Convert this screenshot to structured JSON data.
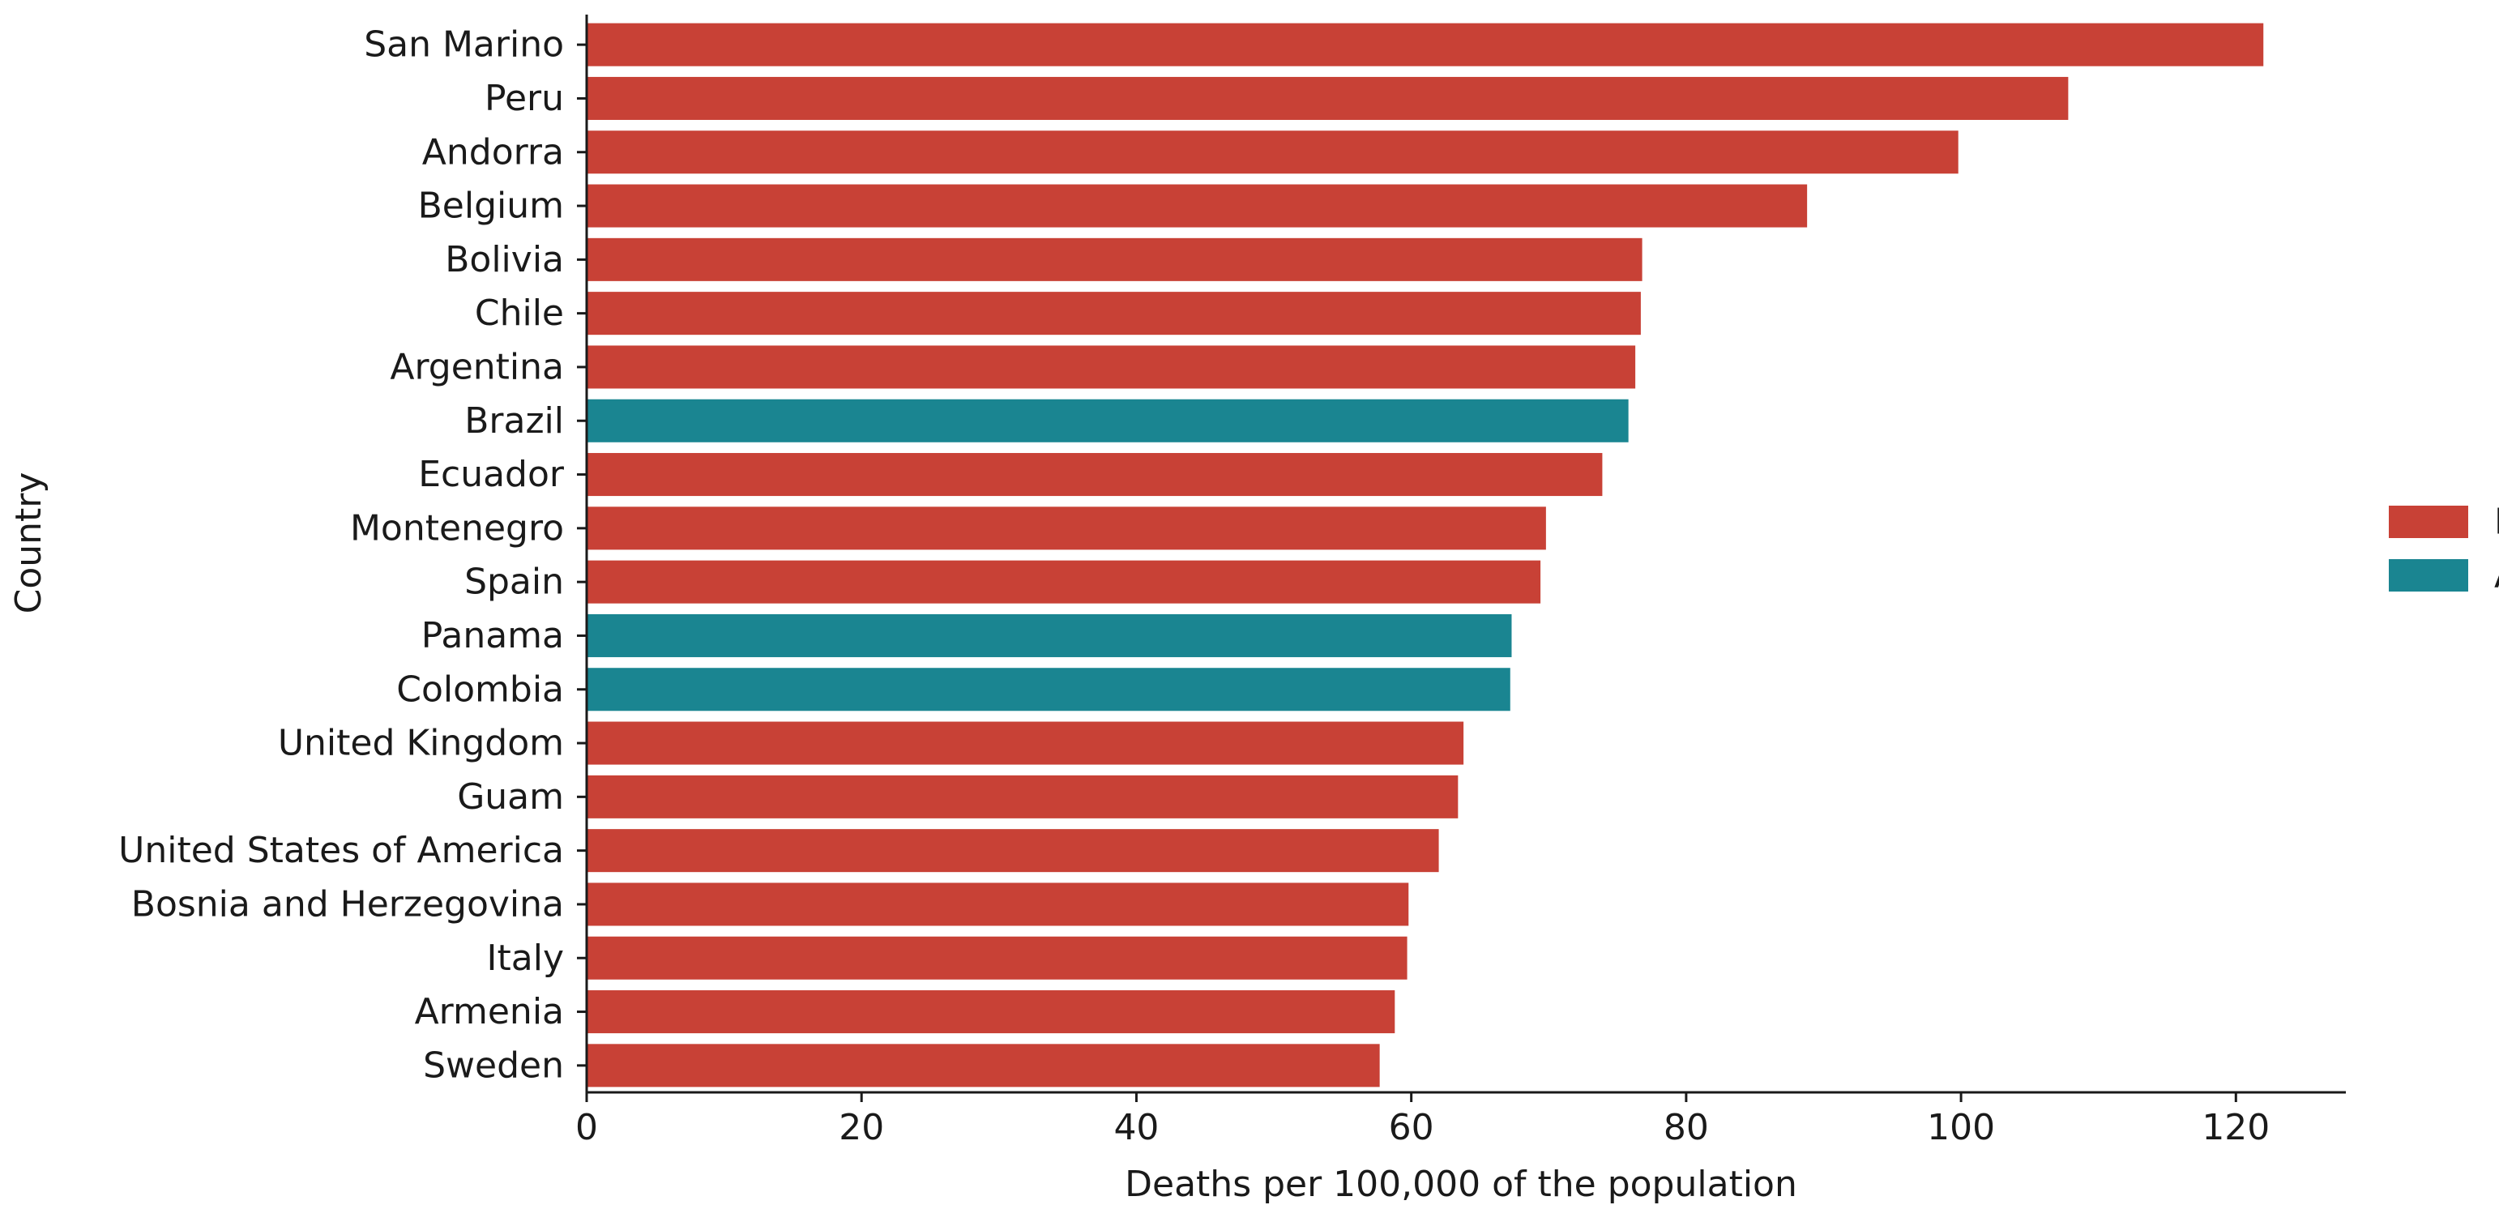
{
  "chart_data": {
    "type": "bar",
    "orientation": "horizontal",
    "title": "",
    "xlabel": "Deaths per 100,000 of the population",
    "ylabel": "Country",
    "xlim": [
      0,
      128
    ],
    "xticks": [
      0,
      20,
      40,
      60,
      80,
      100,
      120
    ],
    "grid": false,
    "legend_position": "right",
    "colors": {
      "B": "#c84136",
      "A": "#1a8591"
    },
    "legend": [
      {
        "name": "B",
        "color": "#c84136"
      },
      {
        "name": "A",
        "color": "#1a8591"
      }
    ],
    "categories": [
      "San Marino",
      "Peru",
      "Andorra",
      "Belgium",
      "Bolivia",
      "Chile",
      "Argentina",
      "Brazil",
      "Ecuador",
      "Montenegro",
      "Spain",
      "Panama",
      "Colombia",
      "United Kingdom",
      "Guam",
      "United States of America",
      "Bosnia and Herzegovina",
      "Italy",
      "Armenia",
      "Sweden"
    ],
    "values": [
      122,
      107.8,
      99.8,
      88.8,
      76.8,
      76.7,
      76.3,
      75.8,
      73.9,
      69.8,
      69.4,
      67.3,
      67.2,
      63.8,
      63.4,
      62,
      59.8,
      59.7,
      58.8,
      57.7
    ],
    "groups": [
      "B",
      "B",
      "B",
      "B",
      "B",
      "B",
      "B",
      "A",
      "B",
      "B",
      "B",
      "A",
      "A",
      "B",
      "B",
      "B",
      "B",
      "B",
      "B",
      "B"
    ]
  }
}
